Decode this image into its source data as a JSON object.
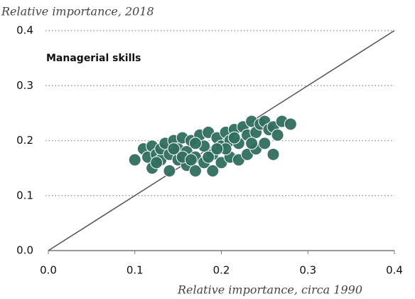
{
  "chart_data": {
    "type": "scatter",
    "title": "Relative importance, 2018",
    "subtitle": "Managerial skills",
    "x_label": "Relative importance, circa 1990",
    "color": "#2f6e5e",
    "x": [
      0.1,
      0.11,
      0.115,
      0.12,
      0.12,
      0.125,
      0.13,
      0.13,
      0.135,
      0.14,
      0.14,
      0.145,
      0.15,
      0.15,
      0.155,
      0.16,
      0.16,
      0.165,
      0.17,
      0.17,
      0.175,
      0.18,
      0.18,
      0.185,
      0.19,
      0.19,
      0.195,
      0.2,
      0.2,
      0.205,
      0.21,
      0.21,
      0.215,
      0.22,
      0.22,
      0.225,
      0.23,
      0.23,
      0.235,
      0.24,
      0.24,
      0.245,
      0.25,
      0.25,
      0.255,
      0.26,
      0.26,
      0.265,
      0.27,
      0.28,
      0.145,
      0.17,
      0.185,
      0.125,
      0.205,
      0.235,
      0.155,
      0.195,
      0.165,
      0.215
    ],
    "y": [
      0.165,
      0.185,
      0.17,
      0.15,
      0.19,
      0.175,
      0.165,
      0.185,
      0.195,
      0.145,
      0.175,
      0.2,
      0.165,
      0.185,
      0.205,
      0.155,
      0.18,
      0.2,
      0.145,
      0.17,
      0.21,
      0.16,
      0.19,
      0.215,
      0.145,
      0.175,
      0.205,
      0.16,
      0.19,
      0.215,
      0.17,
      0.2,
      0.22,
      0.165,
      0.195,
      0.225,
      0.175,
      0.21,
      0.235,
      0.185,
      0.215,
      0.23,
      0.195,
      0.235,
      0.22,
      0.175,
      0.225,
      0.21,
      0.235,
      0.23,
      0.185,
      0.195,
      0.17,
      0.16,
      0.185,
      0.195,
      0.17,
      0.185,
      0.165,
      0.205
    ],
    "xlim": [
      0,
      0.4
    ],
    "ylim": [
      0,
      0.4
    ],
    "xticks": [
      {
        "value": 0,
        "label": "0.0"
      },
      0.1,
      0.2,
      0.3,
      0.4
    ],
    "yticks": [
      {
        "value": 0,
        "label": "0.0"
      },
      0.1,
      0.2,
      0.3,
      0.4
    ],
    "grid": true
  }
}
